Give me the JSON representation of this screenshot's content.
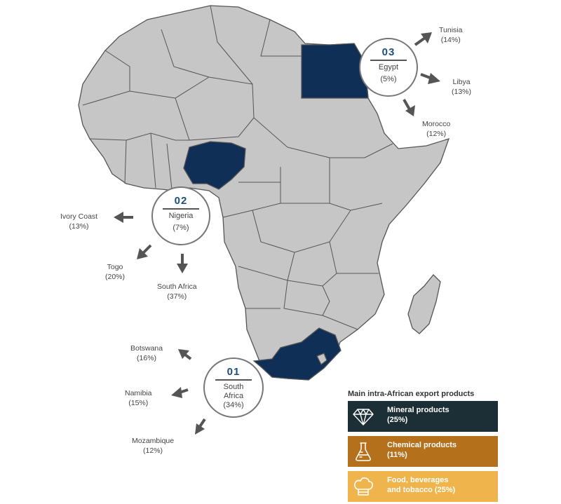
{
  "hubs": [
    {
      "num": "01",
      "name": "South Africa",
      "pct": "(34%)",
      "destinations": [
        {
          "name": "Botswana",
          "pct": "(16%)"
        },
        {
          "name": "Namibia",
          "pct": "(15%)"
        },
        {
          "name": "Mozambique",
          "pct": "(12%)"
        }
      ]
    },
    {
      "num": "02",
      "name": "Nigeria",
      "pct": "(7%)",
      "destinations": [
        {
          "name": "Ivory Coast",
          "pct": "(13%)"
        },
        {
          "name": "Togo",
          "pct": "(20%)"
        },
        {
          "name": "South Africa",
          "pct": "(37%)"
        }
      ]
    },
    {
      "num": "03",
      "name": "Egypt",
      "pct": "(5%)",
      "destinations": [
        {
          "name": "Tunisia",
          "pct": "(14%)"
        },
        {
          "name": "Libya",
          "pct": "(13%)"
        },
        {
          "name": "Morocco",
          "pct": "(12%)"
        }
      ]
    }
  ],
  "legend": {
    "title": "Main intra-African export products",
    "products": [
      {
        "label_line1": "Mineral products",
        "label_line2": "(25%)",
        "color": "#1c2f36",
        "icon": "diamond-icon"
      },
      {
        "label_line1": "Chemical products",
        "label_line2": "(11%)",
        "color": "#b5701c",
        "icon": "flask-icon"
      },
      {
        "label_line1": "Food, beverages",
        "label_line2": "and tobacco (25%)",
        "color": "#f0b44c",
        "icon": "chef-hat-icon"
      }
    ]
  },
  "colors": {
    "land": "#c6c6c6",
    "highlight": "#0f2f57",
    "border": "#555555",
    "hub_number": "#1d4f7e"
  }
}
